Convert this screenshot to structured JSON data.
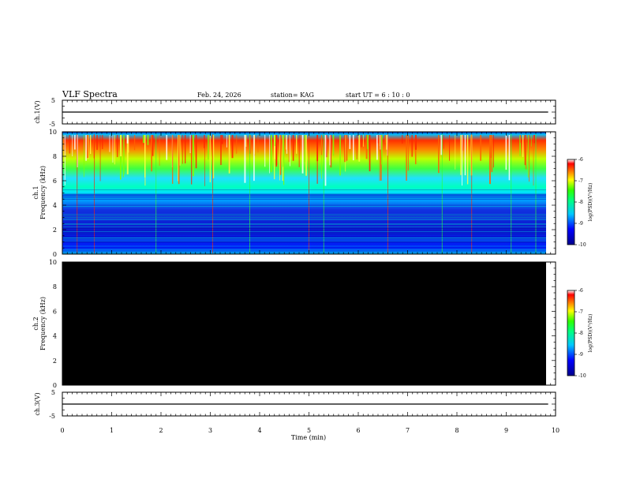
{
  "header": {
    "title": "VLF Spectra",
    "date": "Feb. 24, 2026",
    "station": "station= KAG",
    "start": "start  UT =   6 : 10 : 0"
  },
  "chart_data": [
    {
      "type": "line",
      "panel": "ch1-waveform",
      "ylabel": "ch.1(V)",
      "ylim": [
        -5,
        5
      ],
      "y_ticks": [
        "5",
        "-5"
      ],
      "xlim": [
        0,
        10
      ],
      "series": [
        {
          "x": [
            0,
            9.85
          ],
          "y": [
            0,
            0
          ]
        }
      ]
    },
    {
      "type": "heatmap",
      "panel": "ch1-spectrogram",
      "ylabel": "ch.1\nFrequency (kHz)",
      "ylim": [
        0,
        10
      ],
      "y_ticks": [
        "0",
        "2",
        "4",
        "6",
        "8",
        "10"
      ],
      "xlim": [
        0,
        10
      ],
      "colorbar": {
        "label": "log(PSD)(V²/Hz)",
        "range": [
          -10,
          -6
        ],
        "ticks": [
          "-6",
          "-7",
          "-8",
          "-9",
          "-10"
        ]
      }
    },
    {
      "type": "heatmap",
      "panel": "ch2-spectrogram",
      "ylabel": "ch.2\nFrequency (kHz)",
      "ylim": [
        0,
        10
      ],
      "y_ticks": [
        "0",
        "2",
        "4",
        "6",
        "8",
        "10"
      ],
      "xlim": [
        0,
        10
      ],
      "colorbar": {
        "label": "log(PSD)(V²/Hz)",
        "range": [
          -10,
          -6
        ],
        "ticks": [
          "-6",
          "-7",
          "-8",
          "-9",
          "-10"
        ]
      }
    },
    {
      "type": "line",
      "panel": "ch3-waveform",
      "ylabel": "ch.3(V)",
      "ylim": [
        -5,
        5
      ],
      "y_ticks": [
        "5",
        "-5"
      ],
      "xlim": [
        0,
        10
      ],
      "x_ticks": [
        "0",
        "1",
        "2",
        "3",
        "4",
        "5",
        "6",
        "7",
        "8",
        "9",
        "10"
      ],
      "xlabel": "Time (min)",
      "series": [
        {
          "x": [
            0,
            9.85
          ],
          "y": [
            0,
            0
          ]
        }
      ]
    }
  ]
}
